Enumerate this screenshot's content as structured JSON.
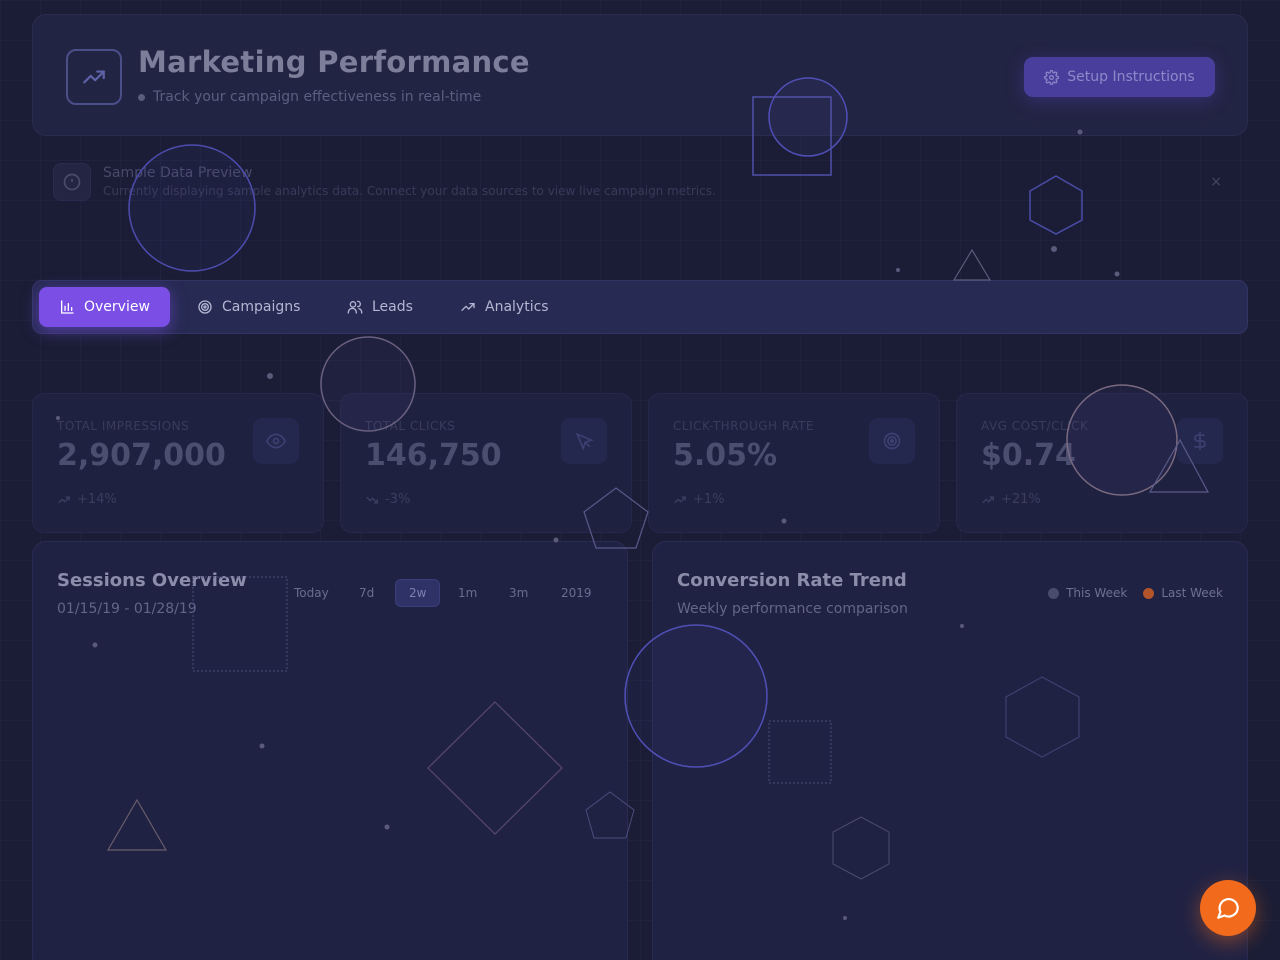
{
  "header": {
    "title": "Marketing Performance",
    "subtitle": "Track your campaign effectiveness in real-time",
    "setup_label": "Setup Instructions",
    "logo_icon": "trending-up-icon"
  },
  "alert": {
    "title": "Sample Data Preview",
    "text": "Currently displaying sample analytics data. Connect your data sources to view live campaign metrics.",
    "close": "×"
  },
  "tabs": [
    {
      "label": "Overview",
      "icon": "bar-chart-icon",
      "active": true
    },
    {
      "label": "Campaigns",
      "icon": "target-icon",
      "active": false
    },
    {
      "label": "Leads",
      "icon": "users-icon",
      "active": false
    },
    {
      "label": "Analytics",
      "icon": "trending-up-icon",
      "active": false
    }
  ],
  "stats": [
    {
      "label": "TOTAL IMPRESSIONS",
      "value": "2,907,000",
      "change": "+14%",
      "icon": "eye-icon"
    },
    {
      "label": "TOTAL CLICKS",
      "value": "146,750",
      "change": "-3%",
      "icon": "cursor-icon"
    },
    {
      "label": "CLICK-THROUGH RATE",
      "value": "5.05%",
      "change": "+1%",
      "icon": "target-icon"
    },
    {
      "label": "AVG COST/CLICK",
      "value": "$0.74",
      "change": "+21%",
      "icon": "dollar-icon"
    }
  ],
  "sessions": {
    "title": "Sessions Overview",
    "date_range": "01/15/19 - 01/28/19",
    "ranges": [
      "Today",
      "7d",
      "2w",
      "1m",
      "3m",
      "2019"
    ],
    "active_range": "2w"
  },
  "conversion": {
    "title": "Conversion Rate Trend",
    "subtitle": "Weekly performance comparison",
    "legend": [
      {
        "label": "This Week",
        "color": "#4a4c6c"
      },
      {
        "label": "Last Week",
        "color": "#b3542a"
      }
    ]
  },
  "colors": {
    "accent": "#7b4fe6",
    "fab": "#f26a1b"
  }
}
